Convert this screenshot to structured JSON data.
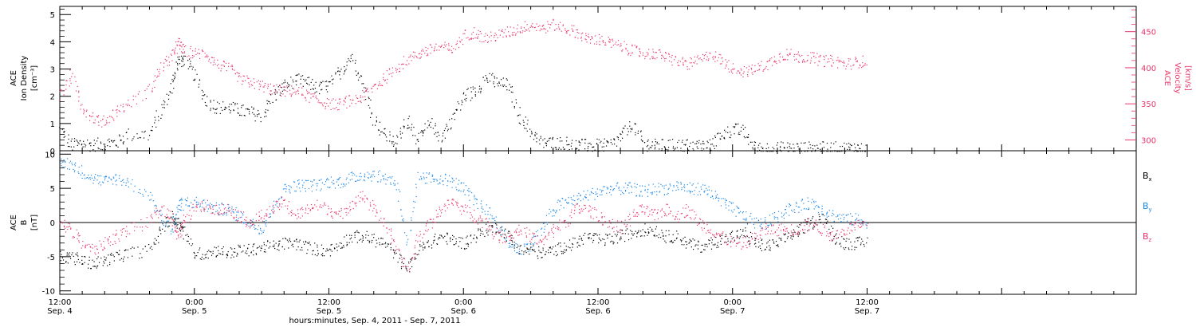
{
  "chart_data": [
    {
      "type": "scatter",
      "panel": "top",
      "ylabel_lines": [
        "ACE",
        "Ion Density",
        "[cm⁻³]"
      ],
      "ylim": [
        0,
        5.3
      ],
      "yticks": [
        0,
        1,
        2,
        3,
        4,
        5
      ],
      "y2label_lines": [
        "ACE",
        "Velocity",
        "[km/s]"
      ],
      "y2lim": [
        285,
        485
      ],
      "y2ticks": [
        300,
        350,
        400,
        450
      ],
      "xlim_hours": [
        0,
        96
      ],
      "data_end_hours": 72,
      "series": [
        {
          "name": "Ion Density",
          "axis": "left",
          "color": "#000000",
          "x": [
            0,
            1,
            2,
            3,
            4,
            5,
            6,
            8,
            9,
            10,
            10.5,
            11,
            12,
            13,
            14,
            15,
            16,
            17,
            18,
            19,
            20,
            21,
            22,
            23,
            24,
            25,
            26,
            27,
            28,
            29,
            30,
            31,
            32,
            33,
            34,
            35,
            36,
            37,
            38,
            39,
            40,
            41,
            42,
            43,
            44,
            45,
            46,
            47,
            48,
            49,
            50,
            51,
            52,
            53,
            54,
            55,
            56,
            57,
            58,
            59,
            60,
            61,
            62,
            63,
            64,
            65,
            66,
            67,
            68,
            69,
            70,
            71,
            72
          ],
          "y": [
            0.8,
            0.2,
            0.3,
            0.2,
            0.3,
            0.3,
            0.6,
            0.6,
            1.5,
            2.4,
            3.3,
            3.4,
            2.8,
            1.9,
            1.6,
            1.6,
            1.5,
            1.4,
            1.3,
            2.0,
            2.4,
            2.6,
            2.5,
            2.3,
            2.4,
            2.9,
            3.5,
            2.5,
            1.2,
            0.6,
            0.3,
            1.2,
            0.4,
            1.0,
            0.5,
            1.2,
            2.0,
            2.2,
            2.7,
            2.5,
            2.4,
            1.3,
            0.7,
            0.3,
            0.3,
            0.3,
            0.2,
            0.2,
            0.2,
            0.2,
            0.5,
            1.0,
            0.3,
            0.2,
            0.2,
            0.2,
            0.2,
            0.2,
            0.2,
            0.6,
            0.8,
            0.7,
            0.1,
            0.1,
            0.1,
            0.1,
            0.1,
            0.1,
            0.1,
            0.1,
            0.1,
            0.1,
            0.05
          ]
        },
        {
          "name": "Velocity",
          "axis": "right",
          "color": "#e8386b",
          "x": [
            0,
            1,
            2,
            3,
            4,
            5,
            6,
            8,
            9,
            10,
            10.5,
            11,
            12,
            13,
            14,
            15,
            16,
            17,
            18,
            19,
            20,
            21,
            22,
            23,
            24,
            25,
            26,
            27,
            28,
            29,
            30,
            31,
            32,
            33,
            34,
            35,
            36,
            37,
            38,
            39,
            40,
            41,
            42,
            43,
            44,
            45,
            46,
            47,
            48,
            49,
            50,
            51,
            52,
            53,
            54,
            55,
            56,
            57,
            58,
            59,
            60,
            61,
            62,
            63,
            64,
            65,
            66,
            67,
            68,
            69,
            70,
            71,
            72
          ],
          "y": [
            360,
            390,
            345,
            330,
            325,
            340,
            350,
            370,
            400,
            415,
            435,
            425,
            420,
            420,
            405,
            400,
            385,
            380,
            375,
            370,
            368,
            368,
            362,
            355,
            350,
            350,
            355,
            360,
            375,
            385,
            400,
            412,
            420,
            425,
            430,
            425,
            445,
            450,
            440,
            445,
            450,
            455,
            460,
            455,
            460,
            455,
            450,
            440,
            440,
            435,
            430,
            425,
            420,
            420,
            415,
            410,
            405,
            410,
            420,
            410,
            400,
            395,
            398,
            405,
            415,
            420,
            415,
            415,
            410,
            410,
            405,
            408,
            410
          ]
        }
      ]
    },
    {
      "type": "scatter",
      "panel": "bottom",
      "ylabel_lines": [
        "ACE",
        "B",
        "[nT]"
      ],
      "ylim": [
        -10.5,
        10.5
      ],
      "yticks": [
        -10,
        -5,
        0,
        5,
        10
      ],
      "xlim_hours": [
        0,
        96
      ],
      "data_end_hours": 72,
      "legend_position": "right",
      "series": [
        {
          "name": "Bx",
          "label_main": "B",
          "label_sub": "x",
          "color": "#000000",
          "x": [
            0,
            1,
            2,
            3,
            4,
            5,
            6,
            8,
            9,
            10,
            10.5,
            11,
            12,
            13,
            14,
            15,
            16,
            17,
            18,
            19,
            20,
            21,
            22,
            23,
            24,
            25,
            26,
            27,
            28,
            29,
            30,
            31,
            32,
            33,
            34,
            35,
            36,
            37,
            38,
            39,
            40,
            41,
            42,
            43,
            44,
            45,
            46,
            47,
            48,
            49,
            50,
            51,
            52,
            53,
            54,
            55,
            56,
            57,
            58,
            59,
            60,
            61,
            62,
            63,
            64,
            65,
            66,
            67,
            68,
            69,
            70,
            71,
            72
          ],
          "y": [
            -5,
            -5,
            -5.5,
            -6,
            -5.5,
            -5,
            -4.5,
            -4,
            -1,
            1,
            0,
            -1,
            -4.5,
            -4.5,
            -4,
            -4.5,
            -4,
            -4,
            -3.5,
            -3.5,
            -3,
            -3,
            -3.5,
            -4,
            -4,
            -3,
            -2,
            -2,
            -2.5,
            -3,
            -5,
            -6.5,
            -4,
            -3,
            -2,
            -2.5,
            -3,
            -2,
            -1,
            -0.5,
            -2,
            -4,
            -4,
            -4.5,
            -4,
            -3.5,
            -3,
            -2,
            -2.5,
            -2.5,
            -2,
            -1.5,
            -1,
            -1,
            -2,
            -2,
            -3,
            -3.5,
            -3,
            -2.5,
            -2,
            -1.5,
            -3,
            -3.5,
            -3,
            -2,
            -1,
            0,
            1,
            -2,
            -3,
            -3,
            -2.8
          ]
        },
        {
          "name": "By",
          "label_main": "B",
          "label_sub": "y",
          "color": "#1e88e5",
          "x": [
            0,
            1,
            2,
            3,
            4,
            5,
            6,
            8,
            9,
            10,
            10.5,
            11,
            12,
            13,
            14,
            15,
            16,
            17,
            18,
            19,
            20,
            21,
            22,
            23,
            24,
            25,
            26,
            27,
            28,
            29,
            30,
            31,
            32,
            33,
            34,
            35,
            36,
            37,
            38,
            39,
            40,
            41,
            42,
            43,
            44,
            45,
            46,
            47,
            48,
            49,
            50,
            51,
            52,
            53,
            54,
            55,
            56,
            57,
            58,
            59,
            60,
            61,
            62,
            63,
            64,
            65,
            66,
            67,
            68,
            69,
            70,
            71,
            72
          ],
          "y": [
            9,
            8.5,
            7.5,
            6.5,
            6,
            6.5,
            6,
            4,
            1,
            -1,
            2,
            3,
            3,
            2.5,
            2,
            2,
            1,
            0,
            -1,
            2,
            5,
            5.5,
            5.5,
            5.5,
            6,
            6,
            6.5,
            7,
            7,
            6.5,
            6,
            -3,
            6.5,
            6.5,
            6.5,
            6,
            5,
            3,
            2,
            0,
            -3,
            -4,
            -3,
            -1,
            2,
            3,
            3.5,
            4,
            4.5,
            5,
            5,
            5,
            4.5,
            5,
            5,
            5.5,
            5,
            5,
            4.5,
            3,
            2,
            1,
            0,
            0,
            1,
            2,
            2.5,
            3,
            2,
            1,
            0.5,
            0.5,
            0
          ]
        },
        {
          "name": "Bz",
          "label_main": "B",
          "label_sub": "z",
          "color": "#e8386b",
          "x": [
            0,
            1,
            2,
            3,
            4,
            5,
            6,
            8,
            9,
            10,
            10.5,
            11,
            12,
            13,
            14,
            15,
            16,
            17,
            18,
            19,
            20,
            21,
            22,
            23,
            24,
            25,
            26,
            27,
            28,
            29,
            30,
            31,
            32,
            33,
            34,
            35,
            36,
            37,
            38,
            39,
            40,
            41,
            42,
            43,
            44,
            45,
            46,
            47,
            48,
            49,
            50,
            51,
            52,
            53,
            54,
            55,
            56,
            57,
            58,
            59,
            60,
            61,
            62,
            63,
            64,
            65,
            66,
            67,
            68,
            69,
            70,
            71,
            72
          ],
          "y": [
            0,
            -1,
            -3,
            -4,
            -3,
            -2,
            -1,
            0,
            2,
            1,
            -2,
            0,
            2,
            2.5,
            2,
            2,
            1,
            0,
            1,
            2,
            3,
            1,
            2,
            2.5,
            2,
            1,
            3,
            4,
            2,
            0,
            -4,
            -7,
            -2,
            0,
            2,
            3,
            2,
            1,
            0,
            -2,
            -2,
            -1,
            -2,
            -3,
            -1,
            0,
            2,
            2,
            1,
            0,
            -1,
            1,
            2,
            1,
            2,
            1,
            2,
            0,
            -1,
            -2,
            -3,
            -3,
            -2,
            -1,
            -1,
            -1,
            -1,
            0,
            -1,
            -2,
            -1,
            -0.5,
            -0.5
          ]
        }
      ]
    }
  ],
  "x_axis": {
    "ticks": [
      {
        "hours": 0,
        "time": "12:00",
        "date": "Sep. 4"
      },
      {
        "hours": 12,
        "time": "0:00",
        "date": "Sep. 5"
      },
      {
        "hours": 24,
        "time": "12:00",
        "date": "Sep. 5"
      },
      {
        "hours": 36,
        "time": "0:00",
        "date": "Sep. 6"
      },
      {
        "hours": 48,
        "time": "12:00",
        "date": "Sep. 6"
      },
      {
        "hours": 60,
        "time": "0:00",
        "date": "Sep. 7"
      },
      {
        "hours": 72,
        "time": "12:00",
        "date": "Sep. 7"
      }
    ],
    "label": "hours:minutes, Sep.  4, 2011 - Sep.  7, 2011"
  }
}
